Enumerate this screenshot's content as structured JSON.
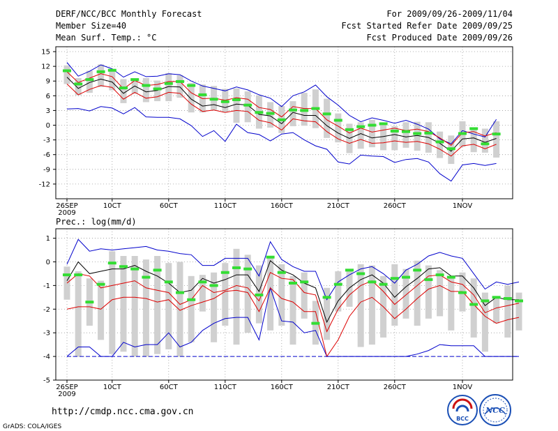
{
  "header": {
    "title": "DERF/NCC/BCC Monthly Forecast",
    "member_size": "Member Size=40",
    "variable": "Mean Surf. Temp.: °C",
    "period": "For 2009/09/26-2009/11/04",
    "started": "Fcst Started Refer Date 2009/09/25",
    "produced": "Fcst Produced Date 2009/09/26"
  },
  "precip_label": "Prec.: log(mm/d)",
  "url": "http://cmdp.ncc.cma.gov.cn",
  "credit": "GrADS: COLA/IGES",
  "logos": {
    "bcc": "BCC",
    "ncc": "NCC"
  },
  "colors": {
    "box": "#d0d0d0",
    "median": "#33dd33",
    "mean": "#000000",
    "spread": "#dd0000",
    "extreme": "#0000cc",
    "grid": "#999999"
  },
  "chart_data": [
    {
      "type": "box-ensemble",
      "title": "Mean Surf. Temp.: °C",
      "ylabel": "°C",
      "ylim": [
        -15,
        16
      ],
      "yticks": [
        -12,
        -9,
        -6,
        -3,
        0,
        3,
        6,
        9,
        12,
        15
      ],
      "xticks": [
        {
          "day": 0,
          "label": "26SEP",
          "sub": "2009"
        },
        {
          "day": 4,
          "label": "10CT",
          "sub": ""
        },
        {
          "day": 9,
          "label": "60CT",
          "sub": ""
        },
        {
          "day": 14,
          "label": "110CT",
          "sub": ""
        },
        {
          "day": 19,
          "label": "160CT",
          "sub": ""
        },
        {
          "day": 24,
          "label": "210CT",
          "sub": ""
        },
        {
          "day": 29,
          "label": "260CT",
          "sub": ""
        },
        {
          "day": 35,
          "label": "1NOV",
          "sub": ""
        }
      ],
      "max": [
        12.8,
        10,
        11,
        12.3,
        11.5,
        9.8,
        10.9,
        9.9,
        10,
        10.5,
        10.3,
        9,
        8,
        7.5,
        7,
        7.8,
        7.2,
        6.2,
        5.5,
        3.8,
        6,
        6.8,
        8.2,
        5.8,
        4.1,
        2,
        0.7,
        1.5,
        1,
        0.4,
        1,
        0.2,
        -0.8,
        -2.8,
        -3.8,
        -1.1,
        -1.8,
        -2.4,
        1.2
      ],
      "mean": [
        9.8,
        7.5,
        8.7,
        9.4,
        8.8,
        6.5,
        8,
        6.8,
        7.1,
        7.9,
        7.8,
        5.3,
        3.9,
        4.2,
        3.6,
        4.3,
        4.1,
        2.2,
        1.9,
        0.3,
        2.6,
        2,
        2,
        -0.1,
        -1.6,
        -2.7,
        -1.7,
        -2.6,
        -2.3,
        -1.9,
        -2.4,
        -2.1,
        -2.5,
        -3.7,
        -5.3,
        -2.8,
        -2.6,
        -3.5,
        -2.7
      ],
      "upper": [
        10.9,
        8.7,
        9.6,
        10.5,
        9.9,
        7.4,
        9.1,
        8.1,
        8.3,
        8.9,
        8.9,
        6.6,
        5.4,
        5.5,
        5.1,
        5.6,
        5.3,
        3.6,
        3.2,
        1.7,
        3.8,
        3.4,
        3.4,
        1.1,
        -0.2,
        -1.6,
        -0.6,
        -1.4,
        -1,
        -0.6,
        -1.1,
        -0.8,
        -1.3,
        -2.6,
        -4.1,
        -1.5,
        -1.3,
        -2.2,
        -1.5
      ],
      "lower": [
        8.4,
        6.2,
        7.3,
        8.1,
        7.7,
        5.3,
        6.7,
        5.5,
        5.8,
        6.7,
        6.5,
        4.3,
        2.8,
        3.1,
        2.6,
        3,
        2.8,
        1,
        0.5,
        -1,
        1.3,
        0.9,
        0.7,
        -1.3,
        -2.8,
        -3.7,
        -2.9,
        -3.7,
        -3.6,
        -3.2,
        -3.5,
        -3.3,
        -3.8,
        -4.9,
        -6.3,
        -4.2,
        -3.9,
        -4.8,
        -3.9
      ],
      "min": [
        3.3,
        3.4,
        2.9,
        3.8,
        3.5,
        2.3,
        3.6,
        1.7,
        1.6,
        1.6,
        1.3,
        -0.1,
        -2.3,
        -1.1,
        -3.3,
        0.2,
        -1.5,
        -1.9,
        -3.2,
        -1.8,
        -1.5,
        -3,
        -4.2,
        -4.9,
        -7.5,
        -7.9,
        -6.1,
        -6.3,
        -6.4,
        -7.6,
        -7,
        -6.8,
        -7.5,
        -9.9,
        -11.4,
        -8.1,
        -7.8,
        -8.2,
        -7.8
      ],
      "boxes": [
        {
          "top": 12.2,
          "bottom": 8.4,
          "median": 11.1
        },
        {
          "top": 9.6,
          "bottom": 6.1,
          "median": 8.4
        },
        {
          "top": 11.1,
          "bottom": 6.6,
          "median": 9.3
        },
        {
          "top": 12.4,
          "bottom": 7.8,
          "median": 10.9
        },
        {
          "top": 11.3,
          "bottom": 7.1,
          "median": 11.2
        },
        {
          "top": 9.4,
          "bottom": 4.5,
          "median": 7.6
        },
        {
          "top": 9.5,
          "bottom": 6.4,
          "median": 9.3
        },
        {
          "top": 9.6,
          "bottom": 4.7,
          "median": 8.1
        },
        {
          "top": 9.1,
          "bottom": 4.9,
          "median": 7.4
        },
        {
          "top": 10.6,
          "bottom": 4.9,
          "median": 8.5
        },
        {
          "top": 10.2,
          "bottom": 5.6,
          "median": 8.9
        },
        {
          "top": 8.6,
          "bottom": 2.6,
          "median": 8.1
        },
        {
          "top": 8.3,
          "bottom": 2.6,
          "median": 6.2
        },
        {
          "top": 8,
          "bottom": 3.1,
          "median": 5.3
        },
        {
          "top": 7.4,
          "bottom": 2.6,
          "median": 4.8
        },
        {
          "top": 7.5,
          "bottom": 0.5,
          "median": 5.2
        },
        {
          "top": 6.9,
          "bottom": 0.6,
          "median": 4.1
        },
        {
          "top": 6.1,
          "bottom": -0.7,
          "median": 2.6
        },
        {
          "top": 4.7,
          "bottom": -0.5,
          "median": 2.4
        },
        {
          "top": 3.9,
          "bottom": -1.6,
          "median": 1.1
        },
        {
          "top": 4.9,
          "bottom": -0.2,
          "median": 3.1
        },
        {
          "top": 6.6,
          "bottom": -0.1,
          "median": 3
        },
        {
          "top": 7.3,
          "bottom": -0.6,
          "median": 3.4
        },
        {
          "top": 5.4,
          "bottom": -2.6,
          "median": 2.3
        },
        {
          "top": 2.4,
          "bottom": -3.5,
          "median": 1
        },
        {
          "top": 0.3,
          "bottom": -5.7,
          "median": -0.9
        },
        {
          "top": 0.6,
          "bottom": -4.8,
          "median": -0.3
        },
        {
          "top": 1.1,
          "bottom": -4.5,
          "median": 0
        },
        {
          "top": 0.4,
          "bottom": -5.1,
          "median": 0.3
        },
        {
          "top": -0.2,
          "bottom": -5.1,
          "median": -1.2
        },
        {
          "top": 0.6,
          "bottom": -4.6,
          "median": -1.3
        },
        {
          "top": 0.7,
          "bottom": -5.2,
          "median": -1.7
        },
        {
          "top": 0.6,
          "bottom": -5.6,
          "median": -1.6
        },
        {
          "top": -1.3,
          "bottom": -6.7,
          "median": -3.4
        },
        {
          "top": -2.1,
          "bottom": -7.9,
          "median": -4.8
        },
        {
          "top": 0.8,
          "bottom": -4.4,
          "median": -1.7
        },
        {
          "top": -0.6,
          "bottom": -5.5,
          "median": -0.7
        },
        {
          "top": -0.7,
          "bottom": -5.6,
          "median": -3.8
        },
        {
          "top": 0.8,
          "bottom": -6.6,
          "median": -1.8
        }
      ]
    },
    {
      "type": "box-ensemble",
      "title": "Prec.: log(mm/d)",
      "ylabel": "log(mm/d)",
      "ylim": [
        -5,
        1.4
      ],
      "yticks": [
        -5,
        -4,
        -3,
        -2,
        -1,
        0,
        1
      ],
      "xticks": [
        {
          "day": 0,
          "label": "26SEP",
          "sub": "2009"
        },
        {
          "day": 4,
          "label": "10CT",
          "sub": ""
        },
        {
          "day": 9,
          "label": "60CT",
          "sub": ""
        },
        {
          "day": 14,
          "label": "110CT",
          "sub": ""
        },
        {
          "day": 19,
          "label": "160CT",
          "sub": ""
        },
        {
          "day": 24,
          "label": "210CT",
          "sub": ""
        },
        {
          "day": 29,
          "label": "260CT",
          "sub": ""
        },
        {
          "day": 35,
          "label": "1NOV",
          "sub": ""
        }
      ],
      "max": [
        -0.1,
        0.95,
        0.45,
        0.55,
        0.5,
        0.55,
        0.6,
        0.65,
        0.5,
        0.45,
        0.35,
        0.3,
        -0.15,
        -0.15,
        0.15,
        0.15,
        0.15,
        -0.6,
        0.85,
        0.1,
        -0.2,
        -0.4,
        -0.4,
        -1.6,
        -0.85,
        -0.55,
        -0.3,
        -0.2,
        -0.5,
        -0.9,
        -0.35,
        -0.1,
        0.25,
        0.4,
        0.25,
        0.15,
        -0.5,
        -1.15,
        -0.85,
        -0.95,
        -0.85
      ],
      "mean": [
        -0.8,
        0,
        -0.5,
        -0.4,
        -0.3,
        -0.3,
        -0.15,
        -0.4,
        -0.6,
        -0.9,
        -1.3,
        -1.2,
        -0.7,
        -0.9,
        -0.75,
        -0.55,
        -0.55,
        -1.25,
        0.05,
        -0.35,
        -0.55,
        -0.9,
        -1.1,
        -2.55,
        -1.65,
        -1.1,
        -0.75,
        -0.55,
        -0.9,
        -1.5,
        -1.05,
        -0.7,
        -0.3,
        -0.25,
        -0.6,
        -0.6,
        -1.1,
        -1.85,
        -1.5,
        -1.6,
        -1.6
      ],
      "upper": [
        -0.9,
        -0.5,
        -0.6,
        -1.1,
        -1.0,
        -0.9,
        -0.8,
        -1.1,
        -1.2,
        -1.3,
        -1.8,
        -1.6,
        -1.0,
        -1.3,
        -1.2,
        -1.0,
        -1.1,
        -1.65,
        -0.45,
        -0.7,
        -0.75,
        -1.3,
        -1.4,
        -2.95,
        -2.0,
        -1.4,
        -1.0,
        -0.8,
        -1.25,
        -1.8,
        -1.4,
        -1.0,
        -0.6,
        -0.55,
        -0.85,
        -0.95,
        -1.4,
        -2.15,
        -1.95,
        -1.85,
        -1.75
      ],
      "lower": [
        -2.0,
        -1.9,
        -1.9,
        -2.0,
        -1.6,
        -1.5,
        -1.5,
        -1.55,
        -1.7,
        -1.6,
        -2.05,
        -1.85,
        -1.7,
        -1.55,
        -1.25,
        -1.2,
        -1.3,
        -2.1,
        -1.1,
        -1.55,
        -1.7,
        -2.1,
        -2.1,
        -4.0,
        -3.3,
        -2.3,
        -1.7,
        -1.5,
        -1.9,
        -2.4,
        -2.0,
        -1.55,
        -1.15,
        -1.0,
        -1.25,
        -1.25,
        -1.8,
        -2.3,
        -2.6,
        -2.45,
        -2.35
      ],
      "min": [
        -4,
        -3.6,
        -3.6,
        -4,
        -4,
        -3.4,
        -3.6,
        -3.5,
        -3.5,
        -3,
        -3.6,
        -3.4,
        -2.9,
        -2.6,
        -2.4,
        -2.35,
        -2.35,
        -3.3,
        -1.1,
        -2.5,
        -2.55,
        -3,
        -2.9,
        -4,
        -4,
        -4,
        -4,
        -4,
        -4,
        -4,
        -4,
        -3.9,
        -3.75,
        -3.5,
        -3.55,
        -3.55,
        -3.55,
        -4,
        -4,
        -4,
        -4
      ],
      "floor": -4,
      "boxes": [
        {
          "top": -0.2,
          "bottom": -1.6,
          "median": -0.55
        },
        {
          "top": -0.4,
          "bottom": -4.0,
          "median": -0.55
        },
        {
          "top": -0.7,
          "bottom": -2.7,
          "median": -1.7
        },
        {
          "top": -0.8,
          "bottom": -3.3,
          "median": -0.95
        },
        {
          "top": 0.45,
          "bottom": -3.9,
          "median": -0.05
        },
        {
          "top": 0.25,
          "bottom": -3.8,
          "median": -0.2
        },
        {
          "top": 0.25,
          "bottom": -4.0,
          "median": -0.3
        },
        {
          "top": 0.1,
          "bottom": -4.0,
          "median": -0.65
        },
        {
          "top": 0.25,
          "bottom": -3.9,
          "median": -0.35
        },
        {
          "top": -0.05,
          "bottom": -3.7,
          "median": -0.85
        },
        {
          "top": 0.0,
          "bottom": -4.0,
          "median": -1.3
        },
        {
          "top": -0.6,
          "bottom": -3.4,
          "median": -1.6
        },
        {
          "top": -0.55,
          "bottom": -2.1,
          "median": -0.85
        },
        {
          "top": -0.45,
          "bottom": -3.4,
          "median": -1.0
        },
        {
          "top": -0.05,
          "bottom": -2.7,
          "median": -0.45
        },
        {
          "top": 0.55,
          "bottom": -3.5,
          "median": -0.25
        },
        {
          "top": 0.3,
          "bottom": -3.0,
          "median": -0.3
        },
        {
          "top": -0.15,
          "bottom": -2.6,
          "median": -1.4
        },
        {
          "top": 0.2,
          "bottom": -2.9,
          "median": 0.2
        },
        {
          "top": -0.1,
          "bottom": -2.7,
          "median": -0.45
        },
        {
          "top": -0.6,
          "bottom": -3.5,
          "median": -0.9
        },
        {
          "top": -0.45,
          "bottom": -2.4,
          "median": -0.85
        },
        {
          "top": -1.65,
          "bottom": -3.5,
          "median": -2.6
        },
        {
          "top": -1.1,
          "bottom": -3.3,
          "median": -1.5
        },
        {
          "top": -0.4,
          "bottom": -2.1,
          "median": -0.95
        },
        {
          "top": -0.3,
          "bottom": -1.9,
          "median": -0.35
        },
        {
          "top": -0.1,
          "bottom": -3.6,
          "median": -0.5
        },
        {
          "top": -0.15,
          "bottom": -3.5,
          "median": -0.85
        },
        {
          "top": -0.6,
          "bottom": -3.2,
          "median": -0.95
        },
        {
          "top": -0.1,
          "bottom": -2.7,
          "median": -0.7
        },
        {
          "top": -0.3,
          "bottom": -2.4,
          "median": -0.65
        },
        {
          "top": 0.05,
          "bottom": -2.7,
          "median": -0.35
        },
        {
          "top": -0.15,
          "bottom": -2.4,
          "median": -0.75
        },
        {
          "top": -0.35,
          "bottom": -2.3,
          "median": -0.55
        },
        {
          "top": -0.6,
          "bottom": -2.9,
          "median": -0.65
        },
        {
          "top": -0.45,
          "bottom": -2.1,
          "median": -1.3
        },
        {
          "top": -0.7,
          "bottom": -3.2,
          "median": -1.8
        },
        {
          "top": -1.3,
          "bottom": -3.8,
          "median": -1.65
        },
        {
          "top": -1.55,
          "bottom": -2.6,
          "median": -1.5
        },
        {
          "top": -1.0,
          "bottom": -3.2,
          "median": -1.55
        },
        {
          "top": -1.3,
          "bottom": -2.9,
          "median": -1.65
        }
      ]
    }
  ]
}
